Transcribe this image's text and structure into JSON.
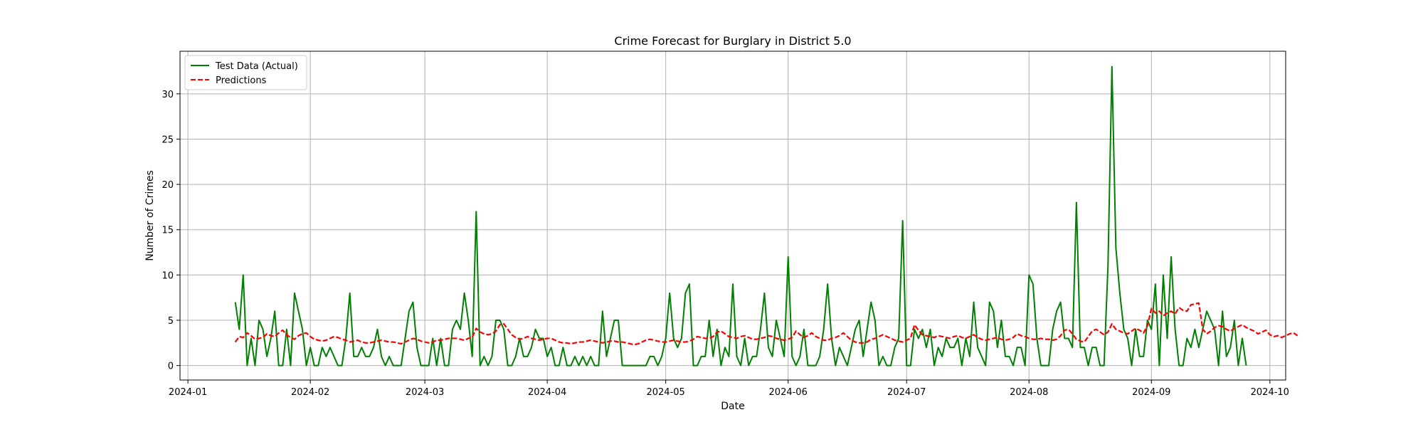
{
  "chart_data": {
    "type": "line",
    "title": "Crime Forecast for Burglary in District 5.0",
    "xlabel": "Date",
    "ylabel": "Number of Crimes",
    "start_date": "2024-01-13",
    "xlim": [
      "2023-12-30",
      "2024-10-05"
    ],
    "ylim": [
      -1.6,
      34.7
    ],
    "xticks": [
      {
        "label": "2024-01",
        "date": "2024-01-01"
      },
      {
        "label": "2024-02",
        "date": "2024-02-01"
      },
      {
        "label": "2024-03",
        "date": "2024-03-01"
      },
      {
        "label": "2024-04",
        "date": "2024-04-01"
      },
      {
        "label": "2024-05",
        "date": "2024-05-01"
      },
      {
        "label": "2024-06",
        "date": "2024-06-01"
      },
      {
        "label": "2024-07",
        "date": "2024-07-01"
      },
      {
        "label": "2024-08",
        "date": "2024-08-01"
      },
      {
        "label": "2024-09",
        "date": "2024-09-01"
      },
      {
        "label": "2024-10",
        "date": "2024-10-01"
      }
    ],
    "yticks": [
      0,
      5,
      10,
      15,
      20,
      25,
      30
    ],
    "grid": true,
    "legend_position": "top-left",
    "series": [
      {
        "name": "Test Data (Actual)",
        "color": "#008000",
        "style": "solid",
        "values": [
          7,
          4,
          10,
          0,
          3,
          0,
          5,
          4,
          1,
          3,
          6,
          0,
          0,
          4,
          0,
          8,
          6,
          4,
          0,
          2,
          0,
          0,
          2,
          1,
          2,
          1,
          0,
          0,
          3,
          8,
          1,
          1,
          2,
          1,
          1,
          2,
          4,
          1,
          0,
          1,
          0,
          0,
          0,
          3,
          6,
          7,
          2,
          0,
          0,
          0,
          3,
          0,
          3,
          0,
          0,
          4,
          5,
          4,
          8,
          5,
          1,
          17,
          0,
          1,
          0,
          1,
          5,
          5,
          4,
          0,
          0,
          1,
          3,
          1,
          1,
          2,
          4,
          3,
          3,
          1,
          2,
          0,
          0,
          2,
          0,
          0,
          1,
          0,
          1,
          0,
          1,
          0,
          0,
          6,
          1,
          3,
          5,
          5,
          0,
          0,
          0,
          0,
          0,
          0,
          0,
          1,
          1,
          0,
          1,
          3,
          8,
          3,
          2,
          3,
          8,
          9,
          0,
          0,
          1,
          1,
          5,
          1,
          4,
          0,
          2,
          1,
          9,
          1,
          0,
          3,
          0,
          1,
          1,
          4,
          8,
          2,
          1,
          5,
          3,
          1,
          12,
          1,
          0,
          1,
          4,
          0,
          0,
          0,
          1,
          4,
          9,
          3,
          0,
          2,
          1,
          0,
          2,
          4,
          5,
          1,
          4,
          7,
          5,
          0,
          1,
          0,
          0,
          2,
          3,
          16,
          0,
          0,
          4,
          3,
          4,
          2,
          4,
          0,
          2,
          1,
          3,
          2,
          2,
          3,
          0,
          3,
          1,
          7,
          2,
          1,
          0,
          7,
          6,
          2,
          5,
          1,
          1,
          0,
          2,
          2,
          0,
          10,
          9,
          3,
          0,
          0,
          0,
          4,
          6,
          7,
          3,
          3,
          2,
          18,
          2,
          2,
          0,
          2,
          2,
          0,
          0,
          11,
          33,
          13,
          8,
          4,
          3,
          0,
          4,
          1,
          1,
          5,
          4,
          9,
          0,
          10,
          3,
          12,
          4,
          0,
          0,
          3,
          2,
          4,
          2,
          4,
          6,
          5,
          4,
          0,
          6,
          1,
          2,
          5,
          0,
          3,
          0
        ]
      },
      {
        "name": "Predictions",
        "color": "#ff0000",
        "style": "dashed",
        "values": [
          2.6,
          3.2,
          3.1,
          3.6,
          3.3,
          2.9,
          3.0,
          3.1,
          3.5,
          3.3,
          3.2,
          3.6,
          3.9,
          3.4,
          3.1,
          2.9,
          3.3,
          3.5,
          3.6,
          3.2,
          2.9,
          2.8,
          2.7,
          2.8,
          3.0,
          3.2,
          3.1,
          2.9,
          2.8,
          2.6,
          2.7,
          2.8,
          2.6,
          2.5,
          2.5,
          2.6,
          2.7,
          2.8,
          2.7,
          2.6,
          2.6,
          2.5,
          2.4,
          2.6,
          2.8,
          3.0,
          2.9,
          2.7,
          2.6,
          2.5,
          2.6,
          2.8,
          2.8,
          2.9,
          3.0,
          3.0,
          3.0,
          2.9,
          2.8,
          3.0,
          3.1,
          4.1,
          3.7,
          3.5,
          3.4,
          3.5,
          3.8,
          4.5,
          4.6,
          4.0,
          3.4,
          3.1,
          2.9,
          3.0,
          3.2,
          3.0,
          2.9,
          2.8,
          2.9,
          3.0,
          3.0,
          2.8,
          2.6,
          2.5,
          2.5,
          2.4,
          2.5,
          2.6,
          2.6,
          2.7,
          2.8,
          2.7,
          2.6,
          2.5,
          2.6,
          2.7,
          2.7,
          2.6,
          2.6,
          2.5,
          2.4,
          2.3,
          2.4,
          2.6,
          2.8,
          2.9,
          2.8,
          2.7,
          2.6,
          2.6,
          2.7,
          2.8,
          2.7,
          2.6,
          2.6,
          2.7,
          2.9,
          3.2,
          3.1,
          3.0,
          3.0,
          3.2,
          3.7,
          3.8,
          3.5,
          3.2,
          3.1,
          3.0,
          3.2,
          3.3,
          3.1,
          2.9,
          2.9,
          3.0,
          3.1,
          3.3,
          3.2,
          3.0,
          2.9,
          2.8,
          2.9,
          3.1,
          3.8,
          3.4,
          3.1,
          3.3,
          3.6,
          3.2,
          3.0,
          2.8,
          2.8,
          3.0,
          3.1,
          3.3,
          3.6,
          3.2,
          2.8,
          2.6,
          2.5,
          2.5,
          2.6,
          2.9,
          3.0,
          3.2,
          3.4,
          3.2,
          3.0,
          2.8,
          2.7,
          2.6,
          2.8,
          3.0,
          4.5,
          3.9,
          3.4,
          3.3,
          3.2,
          3.1,
          3.3,
          3.2,
          3.1,
          3.0,
          3.2,
          3.3,
          3.1,
          3.0,
          3.2,
          3.4,
          3.1,
          2.9,
          2.8,
          2.9,
          3.0,
          3.1,
          2.9,
          2.8,
          2.9,
          3.1,
          3.5,
          3.3,
          3.2,
          3.0,
          2.9,
          2.9,
          3.0,
          2.9,
          2.9,
          2.8,
          2.9,
          3.3,
          3.9,
          4.0,
          3.5,
          2.9,
          2.7,
          2.6,
          3.2,
          3.8,
          4.0,
          3.7,
          3.4,
          3.7,
          4.6,
          4.0,
          3.8,
          3.6,
          3.5,
          3.8,
          4.1,
          3.9,
          3.6,
          4.4,
          6.3,
          5.8,
          6.0,
          5.5,
          5.8,
          6.0,
          5.7,
          6.4,
          6.1,
          6.0,
          6.7,
          6.8,
          6.9,
          4.0,
          3.5,
          3.8,
          4.2,
          4.4,
          4.3,
          4.0,
          3.8,
          4.1,
          4.3,
          4.5,
          4.2,
          4.0,
          3.8,
          3.5,
          3.7,
          3.9,
          3.4,
          3.2,
          3.3,
          3.1,
          3.3,
          3.5,
          3.6,
          3.3
        ]
      }
    ]
  }
}
